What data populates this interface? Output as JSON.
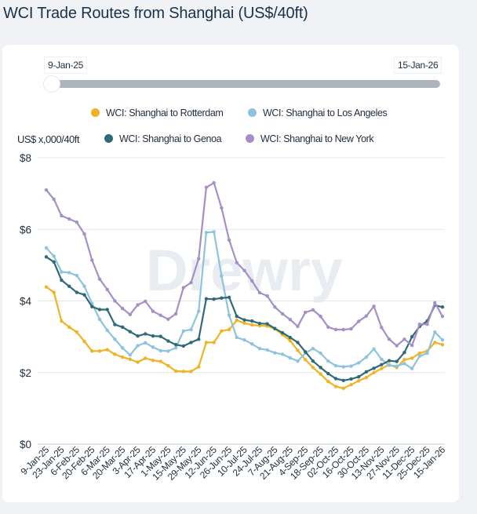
{
  "page": {
    "title": "WCI Trade Routes from Shanghai (US$/40ft)"
  },
  "range_slider": {
    "start_label": "9-Jan-25",
    "end_label": "15-Jan-26",
    "selected_fraction": [
      0,
      1
    ]
  },
  "watermark": "Drewry",
  "chart_data": {
    "type": "line",
    "title": "WCI Trade Routes from Shanghai (US$/40ft)",
    "xlabel": "",
    "ylabel": "US$ x,000/40ft",
    "ylim": [
      0,
      8
    ],
    "yticks": [
      0,
      2,
      4,
      6,
      8
    ],
    "ytick_labels": [
      "$0",
      "$2",
      "$4",
      "$6",
      "$8"
    ],
    "grid": true,
    "legend_position": "top",
    "x": [
      "9-Jan-25",
      "16-Jan-25",
      "23-Jan-25",
      "30-Jan-25",
      "6-Feb-25",
      "13-Feb-25",
      "20-Feb-25",
      "27-Feb-25",
      "6-Mar-25",
      "13-Mar-25",
      "20-Mar-25",
      "27-Mar-25",
      "3-Apr-25",
      "10-Apr-25",
      "17-Apr-25",
      "24-Apr-25",
      "1-May-25",
      "8-May-25",
      "15-May-25",
      "22-May-25",
      "29-May-25",
      "5-Jun-25",
      "12-Jun-25",
      "19-Jun-25",
      "26-Jun-25",
      "3-Jul-25",
      "10-Jul-25",
      "17-Jul-25",
      "24-Jul-25",
      "31-Jul-25",
      "7-Aug-25",
      "14-Aug-25",
      "21-Aug-25",
      "28-Aug-25",
      "4-Sep-25",
      "11-Sep-25",
      "18-Sep-25",
      "25-Sep-25",
      "02-Oct-25",
      "09-Oct-25",
      "16-Oct-25",
      "23-Oct-25",
      "30-Oct-25",
      "6-Nov-25",
      "13-Nov-25",
      "20-Nov-25",
      "27-Nov-25",
      "4-Dec-25",
      "11-Dec-25",
      "18-Dec-25",
      "25-Dec-25",
      "8-Jan-26",
      "15-Jan-26"
    ],
    "xtick_labels": [
      "9-Jan-25",
      "23-Jan-25",
      "6-Feb-25",
      "20-Feb-25",
      "6-Mar-25",
      "20-Mar-25",
      "3-Apr-25",
      "17-Apr-25",
      "1-May-25",
      "15-May-25",
      "29-May-25",
      "12-Jun-25",
      "26-Jun-25",
      "10-Jul-25",
      "24-Jul-25",
      "7-Aug-25",
      "21-Aug-25",
      "4-Sep-25",
      "18-Sep-25",
      "02-Oct-25",
      "16-Oct-25",
      "30-Oct-25",
      "13-Nov-25",
      "27-Nov-25",
      "11-Dec-25",
      "25-Dec-25",
      "15-Jan-26"
    ],
    "series": [
      {
        "name": "WCI: Shanghai to Rotterdam",
        "color": "#F0B323",
        "values": [
          4.39,
          4.24,
          3.44,
          3.27,
          3.13,
          2.87,
          2.6,
          2.6,
          2.64,
          2.51,
          2.43,
          2.37,
          2.29,
          2.4,
          2.34,
          2.31,
          2.19,
          2.04,
          2.03,
          2.03,
          2.16,
          2.84,
          2.84,
          3.16,
          3.2,
          3.46,
          3.38,
          3.33,
          3.31,
          3.3,
          3.22,
          3.06,
          2.89,
          2.62,
          2.36,
          2.14,
          1.96,
          1.75,
          1.61,
          1.56,
          1.66,
          1.77,
          1.86,
          2.0,
          2.11,
          2.22,
          2.14,
          2.36,
          2.4,
          2.54,
          2.6,
          2.84,
          2.78
        ]
      },
      {
        "name": "WCI: Shanghai to Los Angeles",
        "color": "#8EC3DE",
        "values": [
          5.48,
          5.25,
          4.81,
          4.79,
          4.71,
          4.41,
          3.93,
          3.49,
          3.18,
          2.93,
          2.69,
          2.49,
          2.75,
          2.83,
          2.71,
          2.61,
          2.6,
          2.69,
          3.16,
          3.2,
          3.71,
          5.91,
          5.93,
          4.7,
          3.6,
          2.98,
          2.91,
          2.8,
          2.67,
          2.63,
          2.55,
          2.51,
          2.41,
          2.32,
          2.54,
          2.67,
          2.54,
          2.32,
          2.19,
          2.16,
          2.18,
          2.27,
          2.43,
          2.66,
          2.37,
          2.2,
          2.18,
          2.25,
          2.11,
          2.46,
          2.54,
          3.13,
          2.91
        ]
      },
      {
        "name": "WCI: Shanghai to Genoa",
        "color": "#2F6A78",
        "values": [
          5.23,
          5.09,
          4.58,
          4.41,
          4.24,
          4.17,
          3.84,
          3.76,
          3.76,
          3.34,
          3.27,
          3.14,
          3.02,
          3.08,
          3.02,
          3.01,
          2.88,
          2.78,
          2.74,
          2.84,
          2.93,
          4.06,
          4.05,
          4.08,
          4.1,
          3.57,
          3.47,
          3.44,
          3.37,
          3.36,
          3.23,
          3.11,
          2.98,
          2.84,
          2.58,
          2.32,
          2.14,
          1.97,
          1.83,
          1.78,
          1.82,
          1.88,
          2.02,
          2.12,
          2.22,
          2.33,
          2.31,
          2.56,
          3.0,
          3.29,
          3.44,
          3.88,
          3.83
        ]
      },
      {
        "name": "WCI: Shanghai to New York",
        "color": "#A58FC6",
        "values": [
          7.1,
          6.84,
          6.38,
          6.29,
          6.2,
          5.87,
          5.14,
          4.61,
          4.32,
          4.0,
          3.79,
          3.62,
          3.89,
          3.99,
          3.71,
          3.6,
          3.49,
          3.64,
          4.37,
          4.51,
          5.18,
          7.17,
          7.3,
          6.6,
          5.7,
          5.07,
          4.85,
          4.56,
          4.23,
          4.14,
          3.83,
          3.64,
          3.48,
          3.29,
          3.68,
          3.75,
          3.57,
          3.27,
          3.2,
          3.2,
          3.22,
          3.43,
          3.58,
          3.85,
          3.26,
          2.93,
          2.75,
          2.93,
          2.76,
          3.35,
          3.35,
          3.95,
          3.57
        ]
      }
    ]
  },
  "legend": {
    "items": [
      {
        "label": "WCI: Shanghai to Rotterdam",
        "color": "#F0B323"
      },
      {
        "label": "WCI: Shanghai to Los Angeles",
        "color": "#8EC3DE"
      },
      {
        "label": "WCI: Shanghai to Genoa",
        "color": "#2F6A78"
      },
      {
        "label": "WCI: Shanghai to New York",
        "color": "#A58FC6"
      }
    ]
  }
}
